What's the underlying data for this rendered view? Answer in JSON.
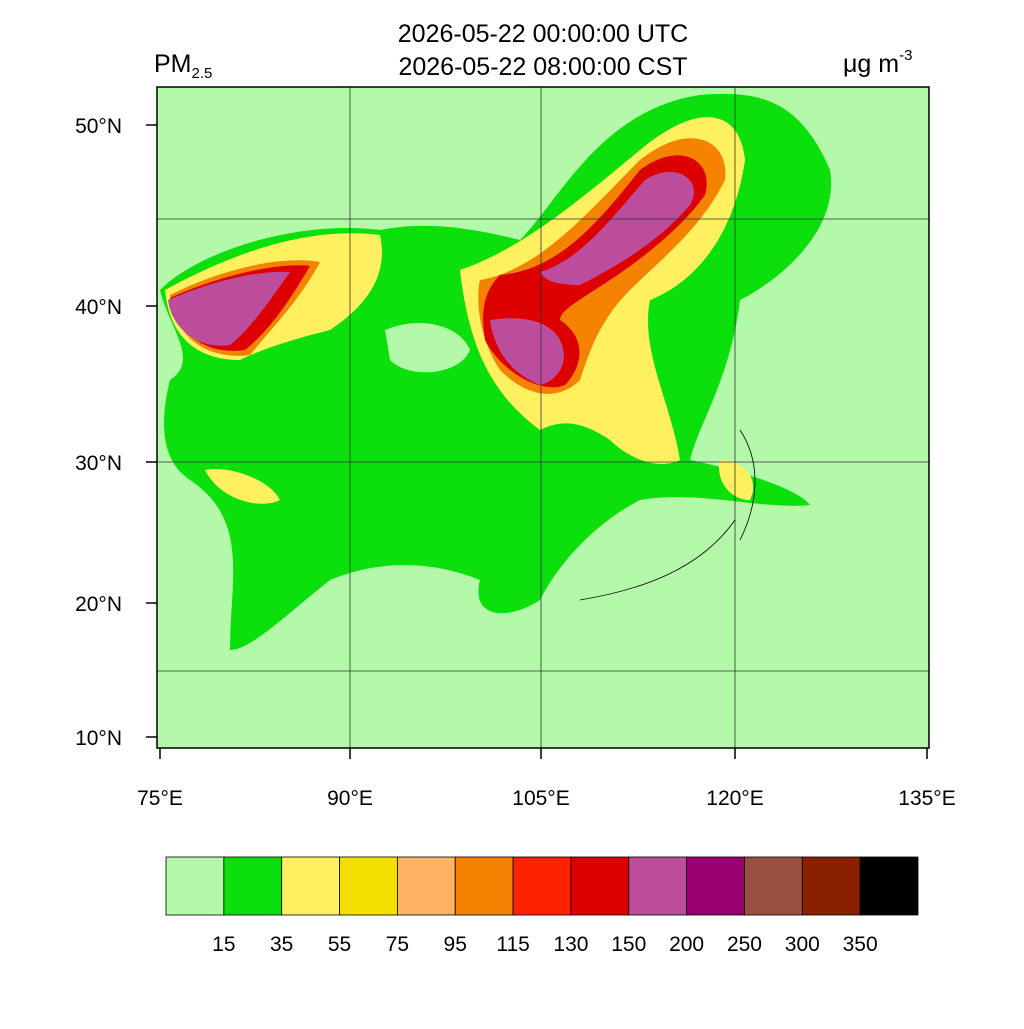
{
  "header": {
    "title_utc": "2026-05-22 00:00:00 UTC",
    "title_cst": "2026-05-22 08:00:00 CST",
    "variable": "PM",
    "variable_sub": "2.5",
    "units": "μg m",
    "units_sup": "-3"
  },
  "map": {
    "lat_labels": [
      "50°N",
      "40°N",
      "30°N",
      "20°N",
      "10°N"
    ],
    "lon_labels": [
      "75°E",
      "90°E",
      "105°E",
      "120°E",
      "135°E"
    ]
  },
  "colorbar": {
    "levels": [
      15,
      35,
      55,
      75,
      95,
      115,
      130,
      150,
      200,
      250,
      300,
      350
    ],
    "colors": [
      "#b4f8aa",
      "#0ce00c",
      "#fff060",
      "#f4e000",
      "#ffb464",
      "#f58200",
      "#ff2200",
      "#dc0000",
      "#bc4c9c",
      "#9a0070",
      "#9a5040",
      "#8a2000",
      "#000000"
    ]
  }
}
